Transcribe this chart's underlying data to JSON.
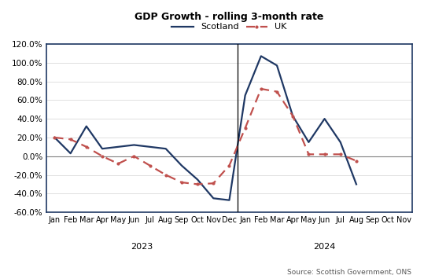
{
  "title": "GDP Growth - rolling 3-month rate",
  "scotland_values": [
    0.2,
    0.03,
    0.32,
    0.08,
    0.1,
    0.12,
    0.1,
    0.08,
    -0.1,
    -0.25,
    -0.45,
    -0.47,
    0.65,
    1.07,
    0.97,
    0.43,
    0.15,
    0.4,
    0.15,
    -0.3,
    null,
    null,
    null
  ],
  "uk_values": [
    0.2,
    0.18,
    0.1,
    0.0,
    -0.08,
    0.0,
    -0.1,
    -0.2,
    -0.28,
    -0.3,
    -0.29,
    -0.1,
    0.3,
    0.72,
    0.69,
    0.43,
    0.02,
    0.02,
    0.02,
    -0.05,
    null,
    null,
    null
  ],
  "scotland_color": "#1f3864",
  "uk_color": "#c0504d",
  "x_labels_2023": [
    "Jan",
    "Feb",
    "Mar",
    "Apr",
    "May",
    "Jun",
    "Jul",
    "Aug",
    "Sep",
    "Oct",
    "Nov",
    "Dec"
  ],
  "x_labels_2024": [
    "Jan",
    "Feb",
    "Mar",
    "Apr",
    "May",
    "Jun",
    "Jul",
    "Aug",
    "Sep",
    "Oct",
    "Nov"
  ],
  "ylim": [
    -0.6,
    1.2
  ],
  "yticks": [
    -0.6,
    -0.4,
    -0.2,
    0.0,
    0.2,
    0.4,
    0.6,
    0.8,
    1.0,
    1.2
  ],
  "source_text": "Source: Scottish Government, ONS",
  "legend_scotland": "Scotland",
  "legend_uk": "UK",
  "background_color": "#ffffff",
  "border_color": "#1f3864"
}
